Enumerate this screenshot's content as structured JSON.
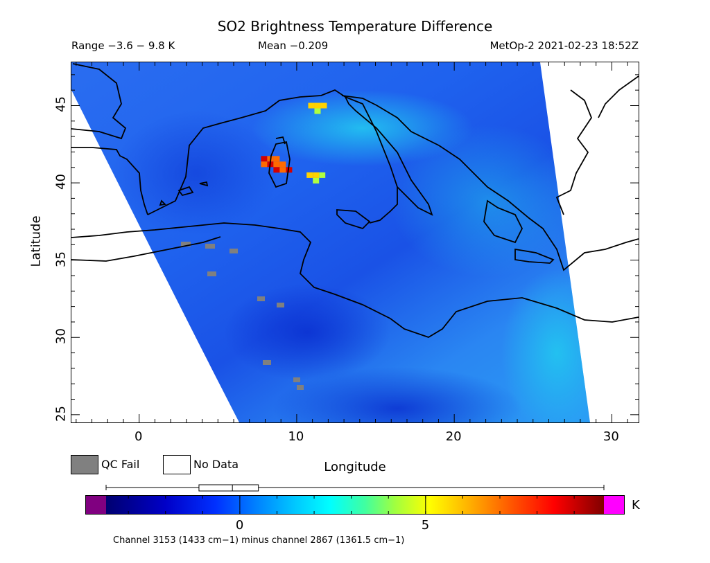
{
  "header": {
    "title": "SO2 Brightness Temperature Difference",
    "range": "Range −3.6 − 9.8 K",
    "mean": "Mean −0.209",
    "satellite_time": "MetOp-2 2021-02-23 18:52Z"
  },
  "map": {
    "lon_range": [
      -4.3,
      31.7
    ],
    "lat_range": [
      24.5,
      47.8
    ],
    "x_ticks": [
      "0",
      "10",
      "20",
      "30"
    ],
    "y_ticks": [
      "25",
      "30",
      "35",
      "40",
      "45"
    ],
    "xlabel": "Longitude",
    "ylabel": "Latitude",
    "hotspots": [
      {
        "lon": 8.7,
        "lat": 41.2,
        "value_K": 9.5
      },
      {
        "lon": 11.3,
        "lat": 45.0,
        "value_K": 6.0
      },
      {
        "lon": 11.2,
        "lat": 40.5,
        "value_K": 4.5
      }
    ]
  },
  "legend": {
    "qc_fail": "QC Fail",
    "no_data": "No Data",
    "qc_color": "#808080"
  },
  "colorbar": {
    "ticks": [
      {
        "label": "0",
        "value": 0
      },
      {
        "label": "5",
        "value": 5
      }
    ],
    "min": -3.6,
    "max": 9.8,
    "unit": "K",
    "under_color": "#800080",
    "over_color": "#ff00ff",
    "box_stats": {
      "p25": -1.1,
      "median": -0.2,
      "p75": 0.5
    }
  },
  "footer": {
    "channel_note": "Channel 3153 (1433 cm−1) minus channel 2867 (1361.5 cm−1)"
  }
}
